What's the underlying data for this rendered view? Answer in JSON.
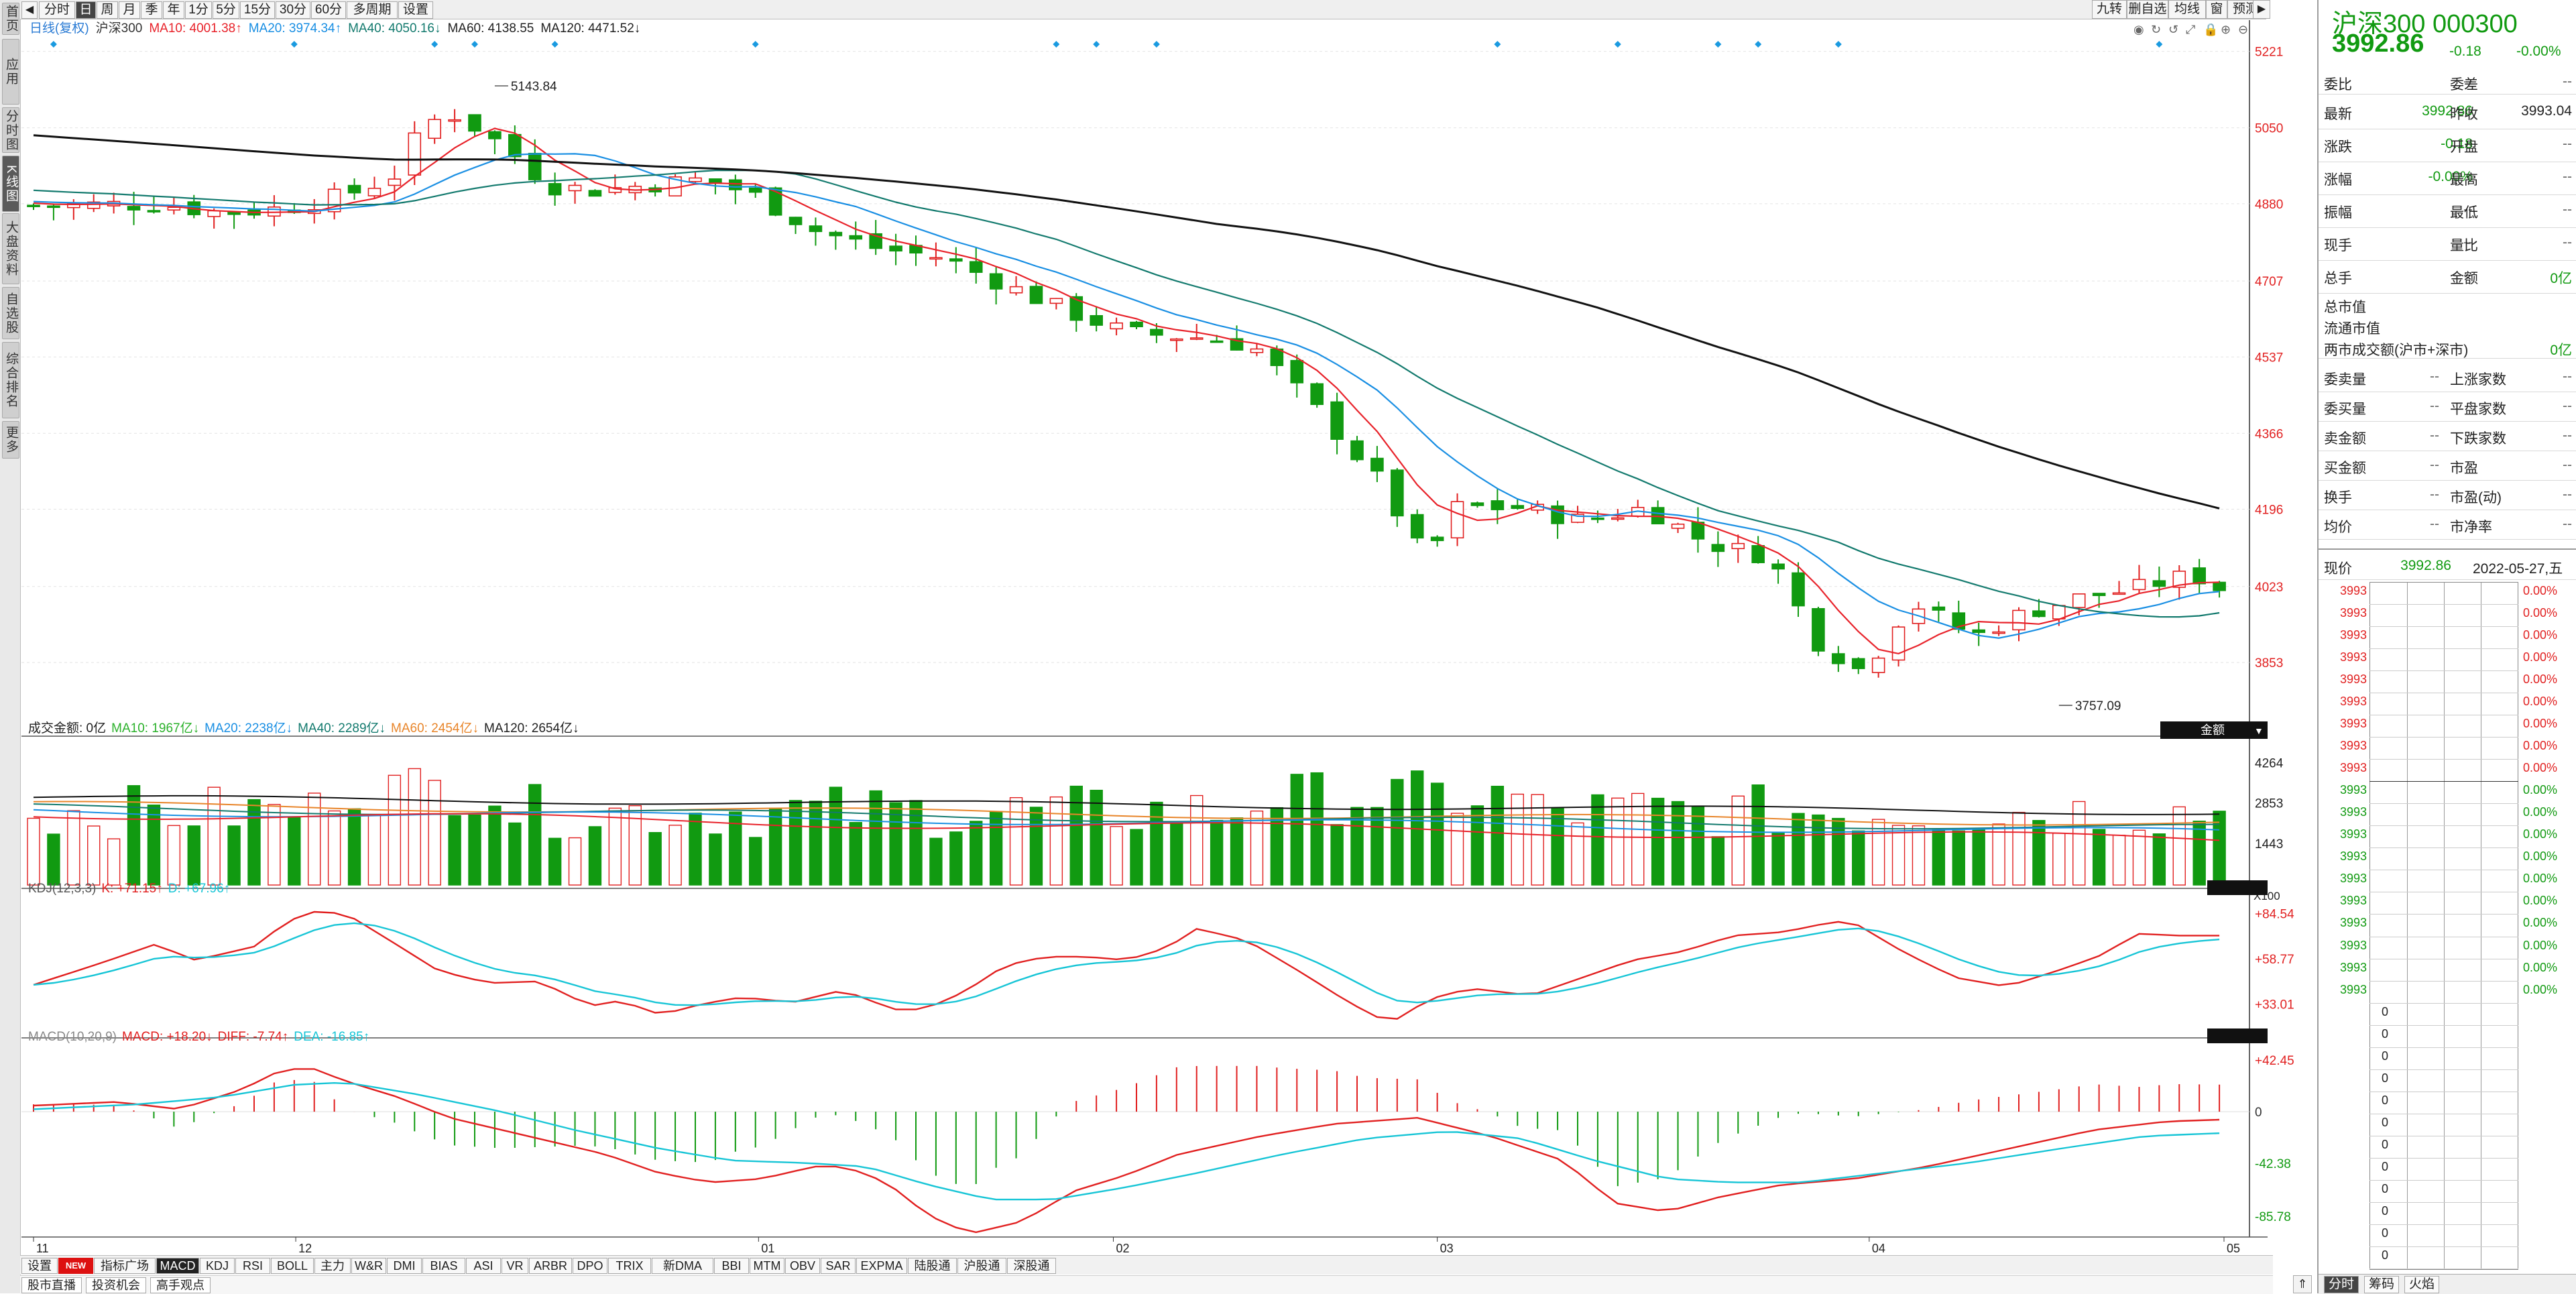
{
  "left_nav": [
    {
      "label": "首页",
      "active": false
    },
    {
      "label": "应用",
      "active": false
    },
    {
      "label": "分时图",
      "active": false
    },
    {
      "label": "K线图",
      "active": true
    },
    {
      "label": "大盘资料",
      "active": false
    },
    {
      "label": "自选股",
      "active": false
    },
    {
      "label": "综合排名",
      "active": false
    },
    {
      "label": "更多",
      "active": false
    }
  ],
  "period_tabs": [
    {
      "label": "分时",
      "active": false
    },
    {
      "label": "日",
      "active": true
    },
    {
      "label": "周",
      "active": false
    },
    {
      "label": "月",
      "active": false
    },
    {
      "label": "季",
      "active": false
    },
    {
      "label": "年",
      "active": false
    },
    {
      "label": "1分",
      "active": false
    },
    {
      "label": "5分",
      "active": false
    },
    {
      "label": "15分",
      "active": false
    },
    {
      "label": "30分",
      "active": false
    },
    {
      "label": "60分",
      "active": false
    },
    {
      "label": "多周期",
      "active": false
    },
    {
      "label": "设置",
      "active": false
    }
  ],
  "top_right_tools": [
    "九转",
    "删自选",
    "均线",
    "窗",
    "预测"
  ],
  "main_legend": {
    "period": "日线(复权)",
    "name": "沪深300",
    "ma10": "MA10: 4001.38↑",
    "ma20": "MA20: 3974.34↑",
    "ma40": "MA40: 4050.16↓",
    "ma60": "MA60: 4138.55",
    "ma120": "MA120: 4471.52↓"
  },
  "price_axis": [
    "5221",
    "5050",
    "4880",
    "4707",
    "4537",
    "4366",
    "4196",
    "4023",
    "3853"
  ],
  "price_annotations": {
    "high": "5143.84",
    "low": "3757.09"
  },
  "volume_legend": {
    "label": "成交金额: 0亿",
    "ma10": "MA10: 1967亿↓",
    "ma20": "MA20: 2238亿↓",
    "ma40": "MA40: 2289亿↓",
    "ma60": "MA60: 2454亿↓",
    "ma120": "MA120: 2654亿↓"
  },
  "volume_axis": [
    "4264",
    "2853",
    "1443"
  ],
  "volume_unit": "X100",
  "volume_selector": "金额",
  "kdj_legend": {
    "name": "KDJ(12,3,3)",
    "k": "K: +71.15↑",
    "d": "D: +67.96↑"
  },
  "kdj_axis": [
    "+84.54",
    "+58.77",
    "+33.01"
  ],
  "macd_legend": {
    "name": "MACD(10,20,9)",
    "macd": "MACD: +18.20↓",
    "diff": "DIFF: -7.74↑",
    "dea": "DEA: -16.85↑"
  },
  "macd_axis": [
    "+42.45",
    "0",
    "-42.38",
    "-85.78"
  ],
  "x_axis": [
    "11",
    "12",
    "01",
    "02",
    "03",
    "04",
    "05"
  ],
  "indicator_tabs": [
    "设置",
    "NEW",
    "指标广场",
    "MACD",
    "KDJ",
    "RSI",
    "BOLL",
    "主力",
    "W&R",
    "DMI",
    "BIAS",
    "ASI",
    "VR",
    "ARBR",
    "DPO",
    "TRIX",
    "新DMA",
    "BBI",
    "MTM",
    "OBV",
    "SAR",
    "EXPMA",
    "陆股通",
    "沪股通",
    "深股通"
  ],
  "active_indicator": "MACD",
  "news_tabs": [
    "股市直播",
    "投资机会",
    "高手观点"
  ],
  "right_panel": {
    "name": "沪深300 000300",
    "price": "3992.86",
    "change": "-0.18",
    "change_pct": "-0.00%",
    "rows1": [
      {
        "l1": "委比",
        "v1": "--",
        "l2": "委差",
        "v2": "--"
      },
      {
        "l1": "最新",
        "v1": "3992.86",
        "l2": "昨收",
        "v2": "3993.04"
      },
      {
        "l1": "涨跌",
        "v1": "-0.18",
        "l2": "开盘",
        "v2": "--"
      },
      {
        "l1": "涨幅",
        "v1": "-0.00%",
        "l2": "最高",
        "v2": "--"
      },
      {
        "l1": "振幅",
        "v1": "--",
        "l2": "最低",
        "v2": "--"
      },
      {
        "l1": "现手",
        "v1": "--",
        "l2": "量比",
        "v2": "--"
      },
      {
        "l1": "总手",
        "v1": "--",
        "l2": "金额",
        "v2": "0亿"
      }
    ],
    "rows2": [
      {
        "l1": "总市值",
        "v1": ""
      },
      {
        "l1": "流通市值",
        "v1": ""
      },
      {
        "l1": "两市成交额(沪市+深市)",
        "v1": "0亿"
      }
    ],
    "rows3": [
      {
        "l1": "委卖量",
        "v1": "--",
        "l2": "上涨家数",
        "v2": "--"
      },
      {
        "l1": "委买量",
        "v1": "--",
        "l2": "平盘家数",
        "v2": "--"
      },
      {
        "l1": "卖金额",
        "v1": "--",
        "l2": "下跌家数",
        "v2": "--"
      },
      {
        "l1": "买金额",
        "v1": "--",
        "l2": "市盈",
        "v2": "--"
      },
      {
        "l1": "换手",
        "v1": "--",
        "l2": "市盈(动)",
        "v2": "--"
      },
      {
        "l1": "均价",
        "v1": "--",
        "l2": "市净率",
        "v2": "--"
      }
    ],
    "now_label": "现价",
    "now_price": "3992.86",
    "now_date": "2022-05-27,五",
    "mini_prices": [
      "3993",
      "3993",
      "3993",
      "3993",
      "3993",
      "3993",
      "3993",
      "3993",
      "3993",
      "3993",
      "3993",
      "3993",
      "3993",
      "3993",
      "3993",
      "3993",
      "3993",
      "3993",
      "3993",
      "0",
      "0",
      "0",
      "0",
      "0",
      "0",
      "0",
      "0",
      "0",
      "0",
      "0",
      "0"
    ],
    "mini_pct": [
      "0.00%",
      "0.00%",
      "0.00%",
      "0.00%",
      "0.00%",
      "0.00%",
      "0.00%",
      "0.00%",
      "0.00%",
      "0.00%",
      "0.00%",
      "0.00%",
      "0.00%",
      "0.00%",
      "0.00%",
      "0.00%",
      "0.00%",
      "0.00%",
      "0.00%"
    ],
    "bottom_tabs": [
      "分时",
      "筹码",
      "火焰"
    ]
  },
  "colors": {
    "up": "#e12020",
    "down": "#119a11",
    "ma10": "#e8232b",
    "ma20": "#1a8fe3",
    "ma40": "#137a6e",
    "ma60": "#e8852a",
    "ma120": "#111111",
    "kdj_k": "#e12020",
    "kdj_d": "#17c5d6"
  }
}
